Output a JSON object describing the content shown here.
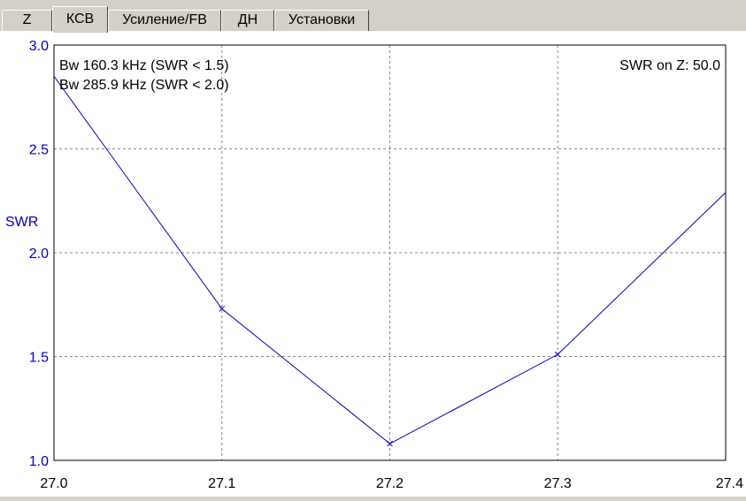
{
  "tabs": [
    {
      "label": "Z"
    },
    {
      "label": "КСВ"
    },
    {
      "label": "Усиление/FB"
    },
    {
      "label": "ДН"
    },
    {
      "label": "Установки"
    }
  ],
  "active_tab": 1,
  "chart_info": {
    "bw_line1": "Bw 160.3 kHz (SWR < 1.5)",
    "bw_line2": "Bw 285.9 kHz (SWR < 2.0)",
    "swr_on_z": "SWR on Z: 50.0"
  },
  "chart_data": {
    "type": "line",
    "title": "",
    "xlabel": "",
    "ylabel": "SWR",
    "x_ticks": [
      "27.0",
      "27.1",
      "27.2",
      "27.3",
      "27.4"
    ],
    "y_ticks": [
      "1.0",
      "1.5",
      "2.0",
      "2.5",
      "3.0"
    ],
    "xlim": [
      27.0,
      27.4
    ],
    "ylim": [
      1.0,
      3.0
    ],
    "grid": true,
    "line_color": "#0000c0",
    "axis_label_color": "#0000c0",
    "series": [
      {
        "x": [
          27.0,
          27.1,
          27.2,
          27.3,
          27.4
        ],
        "y": [
          2.85,
          1.73,
          1.08,
          1.51,
          2.29
        ]
      }
    ]
  }
}
